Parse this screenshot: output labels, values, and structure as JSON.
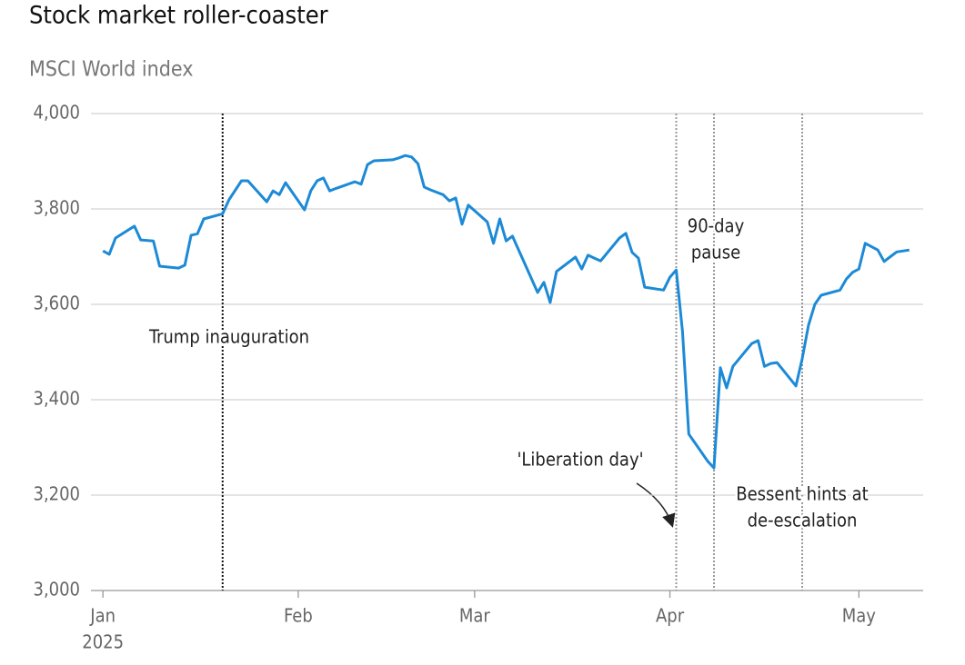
{
  "chart_data": {
    "type": "line",
    "title": "Stock market roller-coaster",
    "subtitle": "MSCI World index",
    "xlim": [
      -1.9,
      130.2
    ],
    "xticks": [
      {
        "value": 0,
        "label": "Jan"
      },
      {
        "value": 31,
        "label": "Feb"
      },
      {
        "value": 59,
        "label": "Mar"
      },
      {
        "value": 90,
        "label": "Apr"
      },
      {
        "value": 120,
        "label": "May"
      }
    ],
    "x_sublabel": "2025",
    "ylim": [
      3000,
      4000
    ],
    "yticks": [
      {
        "value": 3000,
        "label": "3,000"
      },
      {
        "value": 3200,
        "label": "3,200"
      },
      {
        "value": 3400,
        "label": "3,400"
      },
      {
        "value": 3600,
        "label": "3,600"
      },
      {
        "value": 3800,
        "label": "3,800"
      },
      {
        "value": 4000,
        "label": "4,000"
      }
    ],
    "grid": true,
    "series": [
      {
        "name": "MSCI World",
        "color": "#1c8ad6",
        "x": [
          0,
          1,
          2,
          5,
          6,
          8,
          9,
          12,
          13,
          14,
          15,
          16,
          19,
          20,
          22,
          23,
          26,
          27,
          28,
          29,
          32,
          33,
          34,
          35,
          36,
          37,
          40,
          41,
          42,
          43,
          46,
          47,
          48,
          49,
          50,
          51,
          52,
          54,
          55,
          56,
          57,
          58,
          61,
          62,
          63,
          64,
          65,
          69,
          70,
          71,
          72,
          75,
          76,
          77,
          78,
          79,
          82,
          83,
          84,
          85,
          86,
          89,
          90,
          91,
          92,
          93,
          96,
          97,
          98,
          99,
          100,
          103,
          104,
          105,
          106,
          107,
          110,
          111,
          112,
          113,
          114,
          117,
          118,
          119,
          120,
          121,
          123,
          124,
          125,
          126,
          128
        ],
        "values": [
          3712,
          3705,
          3739,
          3764,
          3735,
          3733,
          3680,
          3676,
          3682,
          3745,
          3748,
          3779,
          3790,
          3819,
          3859,
          3859,
          3815,
          3838,
          3830,
          3855,
          3798,
          3838,
          3859,
          3865,
          3838,
          3843,
          3857,
          3852,
          3893,
          3901,
          3903,
          3907,
          3912,
          3909,
          3895,
          3846,
          3840,
          3830,
          3817,
          3823,
          3768,
          3808,
          3773,
          3728,
          3779,
          3733,
          3743,
          3625,
          3646,
          3604,
          3669,
          3699,
          3674,
          3703,
          3697,
          3691,
          3739,
          3749,
          3709,
          3697,
          3636,
          3630,
          3657,
          3672,
          3543,
          3328,
          3271,
          3257,
          3467,
          3425,
          3470,
          3518,
          3524,
          3470,
          3476,
          3478,
          3429,
          3486,
          3556,
          3600,
          3619,
          3630,
          3653,
          3667,
          3674,
          3728,
          3714,
          3690,
          3700,
          3710,
          3714
        ]
      }
    ],
    "annotations": [
      {
        "x": 19,
        "color": "#111111",
        "text": [
          "Trump inauguration"
        ]
      },
      {
        "x": 91,
        "color": "#999999",
        "text": [
          "'Liberation day'"
        ]
      },
      {
        "x": 97,
        "color": "#999999",
        "text": [
          "90-day",
          "pause"
        ]
      },
      {
        "x": 111,
        "color": "#999999",
        "text": [
          "Bessent hints at",
          "de-escalation"
        ]
      }
    ]
  }
}
